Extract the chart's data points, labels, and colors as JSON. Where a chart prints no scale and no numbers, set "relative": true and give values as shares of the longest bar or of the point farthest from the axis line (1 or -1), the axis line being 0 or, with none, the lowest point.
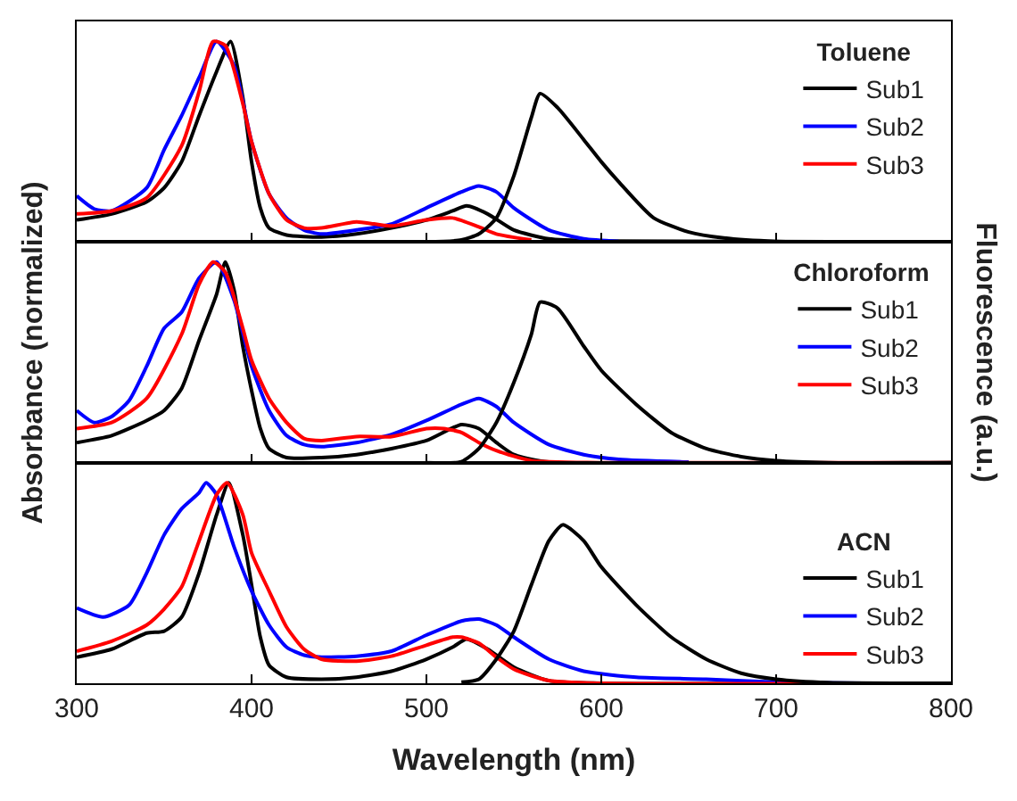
{
  "chart_data": [
    {
      "type": "line",
      "relative": true,
      "legend_title": "Toluene",
      "legend": "top right",
      "grid": false,
      "tick_labels": false,
      "xlim": [
        300,
        800
      ],
      "xticks": [
        300,
        400,
        500,
        600,
        700,
        800
      ],
      "x": [
        300,
        320,
        340,
        350,
        360,
        370,
        380,
        388,
        395,
        400,
        405,
        410,
        420,
        440,
        460,
        480,
        500,
        515,
        523,
        535,
        550,
        570,
        600,
        800
      ],
      "series": [
        {
          "name": "Sub1",
          "color": "#000000",
          "values": [
            0.11,
            0.14,
            0.2,
            0.27,
            0.4,
            0.63,
            0.85,
            1.0,
            0.72,
            0.4,
            0.17,
            0.07,
            0.035,
            0.025,
            0.04,
            0.07,
            0.11,
            0.155,
            0.18,
            0.14,
            0.06,
            0.016,
            0.005,
            0
          ]
        },
        {
          "name": "Sub2",
          "color": "#0000ff",
          "x": [
            300,
            310,
            320,
            340,
            350,
            360,
            370,
            380,
            390,
            400,
            410,
            420,
            430,
            440,
            460,
            480,
            500,
            520,
            530,
            540,
            550,
            570,
            590,
            610
          ],
          "values": [
            0.23,
            0.165,
            0.155,
            0.27,
            0.46,
            0.63,
            0.82,
            1.0,
            0.88,
            0.5,
            0.24,
            0.12,
            0.06,
            0.04,
            0.06,
            0.09,
            0.17,
            0.25,
            0.28,
            0.25,
            0.17,
            0.06,
            0.016,
            0.003
          ]
        },
        {
          "name": "Sub3",
          "color": "#ff0000",
          "x": [
            300,
            320,
            340,
            360,
            370,
            378,
            385,
            395,
            400,
            410,
            420,
            430,
            440,
            460,
            470,
            480,
            500,
            515,
            530,
            540,
            560
          ],
          "values": [
            0.14,
            0.155,
            0.22,
            0.48,
            0.75,
            1.0,
            0.98,
            0.69,
            0.5,
            0.24,
            0.11,
            0.07,
            0.07,
            0.1,
            0.09,
            0.08,
            0.11,
            0.12,
            0.075,
            0.04,
            0.01
          ]
        },
        {
          "color": "#000000",
          "x": [
            500,
            520,
            530,
            540,
            550,
            560,
            565,
            575,
            590,
            600,
            610,
            630,
            650,
            670,
            700,
            750,
            800
          ],
          "values": [
            0,
            0.01,
            0.04,
            0.12,
            0.33,
            0.62,
            0.74,
            0.67,
            0.51,
            0.4,
            0.3,
            0.12,
            0.05,
            0.02,
            0.003,
            0,
            0
          ]
        }
      ]
    },
    {
      "type": "line",
      "relative": true,
      "legend_title": "Chloroform",
      "legend": "top right",
      "grid": false,
      "tick_labels": false,
      "ylabel": "Absorbance (normalized)",
      "y2label": "Fluorescence (a.u.)",
      "xlim": [
        300,
        800
      ],
      "xticks": [
        300,
        400,
        500,
        600,
        700,
        800
      ],
      "x": [
        300,
        320,
        340,
        350,
        360,
        370,
        380,
        385,
        390,
        395,
        400,
        405,
        410,
        420,
        440,
        460,
        480,
        500,
        520,
        530,
        540,
        550,
        570,
        800
      ],
      "series": [
        {
          "name": "Sub1",
          "color": "#000000",
          "values": [
            0.1,
            0.135,
            0.21,
            0.26,
            0.37,
            0.61,
            0.84,
            1.0,
            0.86,
            0.58,
            0.36,
            0.17,
            0.07,
            0.025,
            0.025,
            0.04,
            0.07,
            0.11,
            0.19,
            0.17,
            0.1,
            0.04,
            0.003,
            0
          ]
        },
        {
          "name": "Sub2",
          "color": "#0000ff",
          "x": [
            300,
            310,
            320,
            330,
            340,
            350,
            360,
            370,
            380,
            390,
            400,
            410,
            420,
            430,
            440,
            460,
            480,
            500,
            520,
            530,
            540,
            550,
            570,
            590,
            610,
            650
          ],
          "values": [
            0.26,
            0.2,
            0.23,
            0.31,
            0.48,
            0.67,
            0.75,
            0.92,
            1.0,
            0.81,
            0.48,
            0.26,
            0.135,
            0.09,
            0.08,
            0.1,
            0.14,
            0.21,
            0.29,
            0.32,
            0.28,
            0.2,
            0.09,
            0.04,
            0.016,
            0.003
          ]
        },
        {
          "name": "Sub3",
          "color": "#ff0000",
          "x": [
            300,
            320,
            340,
            360,
            370,
            378,
            385,
            395,
            400,
            410,
            420,
            430,
            440,
            460,
            480,
            500,
            510,
            520,
            530,
            540,
            560,
            600,
            800
          ],
          "values": [
            0.17,
            0.2,
            0.32,
            0.64,
            0.89,
            1.0,
            0.95,
            0.67,
            0.51,
            0.32,
            0.2,
            0.12,
            0.11,
            0.13,
            0.13,
            0.17,
            0.17,
            0.15,
            0.1,
            0.06,
            0.01,
            0,
            0
          ]
        },
        {
          "color": "#000000",
          "x": [
            500,
            520,
            530,
            540,
            550,
            560,
            565,
            575,
            590,
            600,
            620,
            640,
            660,
            680,
            700,
            730,
            800
          ],
          "values": [
            0,
            0.005,
            0.07,
            0.2,
            0.4,
            0.64,
            0.8,
            0.77,
            0.58,
            0.46,
            0.29,
            0.15,
            0.07,
            0.03,
            0.01,
            0,
            0
          ]
        }
      ]
    },
    {
      "type": "line",
      "relative": true,
      "legend_title": "ACN",
      "legend": "right",
      "grid": false,
      "tick_labels": "x",
      "xlabel": "Wavelength (nm)",
      "xlim": [
        300,
        800
      ],
      "xticks": [
        300,
        400,
        500,
        600,
        700,
        800
      ],
      "x": [
        300,
        320,
        340,
        350,
        360,
        370,
        380,
        387,
        395,
        400,
        405,
        410,
        420,
        440,
        460,
        480,
        500,
        515,
        523,
        535,
        550,
        570,
        600,
        800
      ],
      "series": [
        {
          "name": "Sub1",
          "color": "#000000",
          "values": [
            0.13,
            0.17,
            0.25,
            0.26,
            0.33,
            0.55,
            0.84,
            1.0,
            0.74,
            0.49,
            0.23,
            0.09,
            0.03,
            0.02,
            0.03,
            0.06,
            0.12,
            0.18,
            0.22,
            0.17,
            0.08,
            0.013,
            0,
            0
          ]
        },
        {
          "name": "Sub2",
          "color": "#0000ff",
          "x": [
            300,
            315,
            330,
            340,
            350,
            360,
            370,
            374,
            380,
            390,
            400,
            410,
            420,
            430,
            440,
            460,
            480,
            500,
            520,
            530,
            540,
            550,
            570,
            590,
            620,
            660,
            700,
            750,
            800
          ],
          "values": [
            0.375,
            0.33,
            0.39,
            0.55,
            0.74,
            0.87,
            0.95,
            1.0,
            0.94,
            0.68,
            0.46,
            0.29,
            0.18,
            0.14,
            0.13,
            0.135,
            0.16,
            0.24,
            0.31,
            0.32,
            0.29,
            0.23,
            0.12,
            0.06,
            0.03,
            0.02,
            0.006,
            0,
            0
          ]
        },
        {
          "name": "Sub3",
          "color": "#ff0000",
          "x": [
            300,
            320,
            340,
            350,
            360,
            370,
            380,
            386,
            395,
            400,
            410,
            420,
            430,
            440,
            460,
            480,
            500,
            515,
            520,
            530,
            540,
            550,
            570,
            600,
            800
          ],
          "values": [
            0.16,
            0.21,
            0.29,
            0.37,
            0.48,
            0.71,
            0.94,
            1.0,
            0.84,
            0.65,
            0.46,
            0.28,
            0.17,
            0.12,
            0.11,
            0.135,
            0.19,
            0.23,
            0.23,
            0.2,
            0.13,
            0.07,
            0.013,
            0,
            0
          ]
        },
        {
          "color": "#000000",
          "x": [
            520,
            530,
            540,
            550,
            560,
            570,
            578,
            590,
            600,
            620,
            640,
            660,
            680,
            700,
            730,
            800
          ],
          "values": [
            0.005,
            0.02,
            0.12,
            0.26,
            0.49,
            0.71,
            0.79,
            0.71,
            0.58,
            0.39,
            0.23,
            0.12,
            0.05,
            0.02,
            0.003,
            0
          ]
        }
      ]
    }
  ]
}
